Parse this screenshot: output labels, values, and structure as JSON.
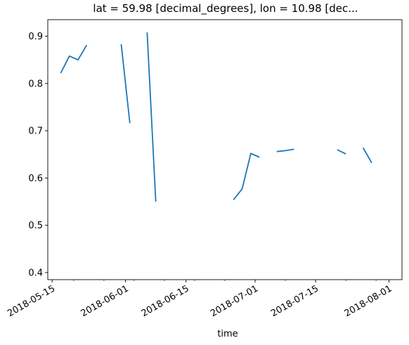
{
  "chart_data": {
    "type": "line",
    "title": "lat = 59.98 [decimal_degrees], lon = 10.98 [dec...",
    "xlabel": "time",
    "ylabel": "",
    "x_tick_labels": [
      "2018-05-15",
      "2018-06-01",
      "2018-06-15",
      "2018-07-01",
      "2018-07-15",
      "2018-08-01"
    ],
    "y_tick_labels": [
      "0.4",
      "0.5",
      "0.6",
      "0.7",
      "0.8",
      "0.9"
    ],
    "x_ticks": [
      "2018-05-15",
      "2018-06-01",
      "2018-06-15",
      "2018-07-01",
      "2018-07-15",
      "2018-08-01"
    ],
    "y_ticks": [
      0.4,
      0.5,
      0.6,
      0.7,
      0.8,
      0.9
    ],
    "xlim": [
      "2018-05-14",
      "2018-08-04"
    ],
    "ylim": [
      0.385,
      0.935
    ],
    "grid": false,
    "line_color": "#1f77b4",
    "segments": [
      [
        {
          "x": "2018-05-17",
          "y": 0.822
        },
        {
          "x": "2018-05-19",
          "y": 0.858
        },
        {
          "x": "2018-05-21",
          "y": 0.85
        },
        {
          "x": "2018-05-23",
          "y": 0.881
        }
      ],
      [
        {
          "x": "2018-05-31",
          "y": 0.883
        },
        {
          "x": "2018-06-02",
          "y": 0.716
        }
      ],
      [
        {
          "x": "2018-06-06",
          "y": 0.908
        },
        {
          "x": "2018-06-08",
          "y": 0.55
        }
      ],
      [
        {
          "x": "2018-06-26",
          "y": 0.554
        },
        {
          "x": "2018-06-28",
          "y": 0.577
        },
        {
          "x": "2018-06-30",
          "y": 0.652
        },
        {
          "x": "2018-07-02",
          "y": 0.644
        }
      ],
      [
        {
          "x": "2018-07-06",
          "y": 0.656
        },
        {
          "x": "2018-07-08",
          "y": 0.658
        },
        {
          "x": "2018-07-10",
          "y": 0.661
        }
      ],
      [
        {
          "x": "2018-07-20",
          "y": 0.66
        },
        {
          "x": "2018-07-22",
          "y": 0.651
        }
      ],
      [
        {
          "x": "2018-07-26",
          "y": 0.664
        },
        {
          "x": "2018-07-28",
          "y": 0.632
        }
      ]
    ]
  }
}
